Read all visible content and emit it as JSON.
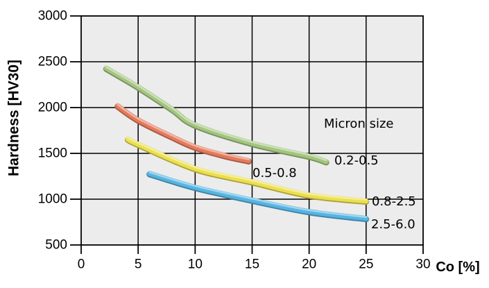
{
  "chart_data": {
    "type": "line",
    "title": "",
    "xlabel": "Co [%]",
    "ylabel": "Hardness [HV30]",
    "xlim": [
      0,
      30
    ],
    "ylim": [
      500,
      3000
    ],
    "xticks": [
      0,
      5,
      10,
      15,
      20,
      25,
      30
    ],
    "yticks": [
      3000,
      2500,
      2000,
      1500,
      1000,
      500
    ],
    "grid": true,
    "plot_bg_color": "#ececec",
    "grid_color": "#000000",
    "legend_title": "Micron size",
    "legend_position": "inside-right",
    "series": [
      {
        "name": "0.2-0.5",
        "color": "#a3c57f",
        "points": [
          [
            2.2,
            2430
          ],
          [
            5,
            2225
          ],
          [
            8,
            1980
          ],
          [
            10,
            1810
          ],
          [
            15,
            1610
          ],
          [
            20,
            1470
          ],
          [
            21.5,
            1410
          ]
        ]
      },
      {
        "name": "0.5-0.8",
        "color": "#e47a5c",
        "points": [
          [
            3.2,
            2020
          ],
          [
            5,
            1865
          ],
          [
            8,
            1680
          ],
          [
            10,
            1570
          ],
          [
            12.5,
            1480
          ],
          [
            14.7,
            1420
          ]
        ]
      },
      {
        "name": "0.8-2.5",
        "color": "#ebdf4d",
        "points": [
          [
            4.1,
            1655
          ],
          [
            5,
            1600
          ],
          [
            10,
            1335
          ],
          [
            15,
            1190
          ],
          [
            20,
            1045
          ],
          [
            25,
            980
          ]
        ]
      },
      {
        "name": "2.5-6.0",
        "color": "#56b4e1",
        "points": [
          [
            6,
            1280
          ],
          [
            10,
            1130
          ],
          [
            15,
            990
          ],
          [
            20,
            865
          ],
          [
            25,
            790
          ]
        ]
      }
    ]
  }
}
